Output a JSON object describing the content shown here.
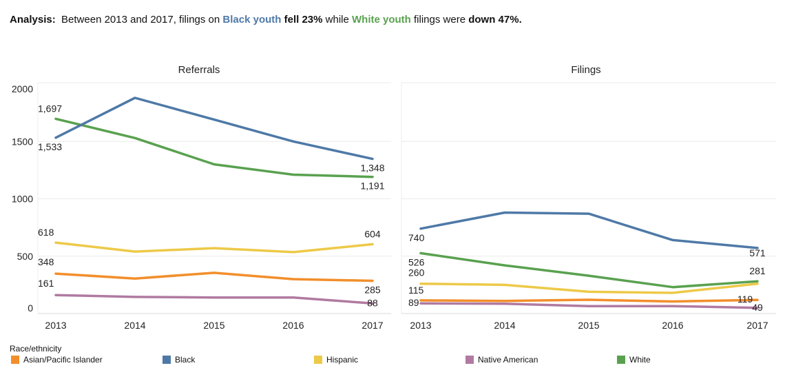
{
  "analysis": {
    "label": "Analysis:",
    "text1": "Between 2013 and 2017, filings on",
    "black_group": "Black youth",
    "black_change": "fell 23%",
    "text2": "while",
    "white_group": "White youth",
    "text3": "filings were",
    "white_change": "down 47%."
  },
  "colors": {
    "Asian/Pacific Islander": "#f28e2b",
    "Black": "#4e79a7",
    "Hispanic": "#edc948",
    "Native American": "#b07aa1",
    "White": "#59a14f"
  },
  "legend": {
    "title": "Race/ethnicity",
    "items": [
      "Asian/Pacific Islander",
      "Black",
      "Hispanic",
      "Native American",
      "White"
    ]
  },
  "chart_data": [
    {
      "type": "line",
      "title": "Referrals",
      "x": [
        "2013",
        "2014",
        "2015",
        "2016",
        "2017"
      ],
      "ylim": [
        0,
        2000
      ],
      "yticks": [
        "0",
        "500",
        "1000",
        "1500",
        "2000"
      ],
      "ytick_values": [
        0,
        500,
        1000,
        1500,
        2000
      ],
      "grid": true,
      "series": [
        {
          "name": "Black",
          "values": [
            1533,
            1880,
            1690,
            1500,
            1348
          ],
          "labels": [
            "1,533",
            "1,348"
          ]
        },
        {
          "name": "White",
          "values": [
            1697,
            1530,
            1300,
            1210,
            1191
          ],
          "labels": [
            "1,697",
            "1,191"
          ]
        },
        {
          "name": "Hispanic",
          "values": [
            618,
            540,
            570,
            535,
            604
          ],
          "labels": [
            "618",
            "604"
          ]
        },
        {
          "name": "Asian/Pacific Islander",
          "values": [
            348,
            305,
            355,
            300,
            285
          ],
          "labels": [
            "348",
            "285"
          ]
        },
        {
          "name": "Native American",
          "values": [
            161,
            145,
            140,
            140,
            88
          ],
          "labels": [
            "161",
            "88"
          ]
        }
      ]
    },
    {
      "type": "line",
      "title": "Filings",
      "x": [
        "2013",
        "2014",
        "2015",
        "2016",
        "2017"
      ],
      "ylim": [
        0,
        2000
      ],
      "grid": true,
      "series": [
        {
          "name": "Black",
          "values": [
            740,
            880,
            870,
            640,
            571
          ],
          "labels": [
            "740",
            "571"
          ]
        },
        {
          "name": "White",
          "values": [
            526,
            420,
            330,
            230,
            281
          ],
          "labels": [
            "526",
            "281"
          ]
        },
        {
          "name": "Hispanic",
          "values": [
            260,
            250,
            190,
            180,
            260
          ],
          "labels": [
            "260",
            ""
          ]
        },
        {
          "name": "Asian/Pacific Islander",
          "values": [
            115,
            110,
            120,
            105,
            119
          ],
          "labels": [
            "115",
            "119"
          ]
        },
        {
          "name": "Native American",
          "values": [
            89,
            85,
            65,
            65,
            49
          ],
          "labels": [
            "89",
            "49"
          ]
        }
      ]
    }
  ]
}
